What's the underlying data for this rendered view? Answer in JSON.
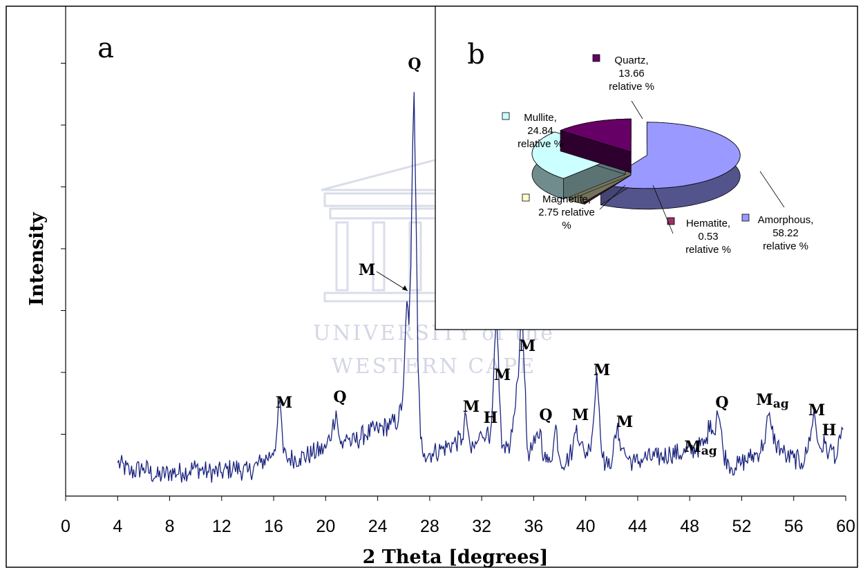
{
  "chart_data": [
    {
      "panel": "a",
      "type": "line",
      "xlabel": "2 Theta [degrees]",
      "ylabel": "Intensity",
      "xlim": [
        0,
        60
      ],
      "xticks": [
        0,
        4,
        8,
        12,
        16,
        20,
        24,
        28,
        32,
        36,
        40,
        44,
        48,
        52,
        56,
        60
      ],
      "ylim": [
        0,
        100
      ],
      "y_tick_labels_shown": false,
      "grid": false,
      "series": [
        {
          "color": "#1a237e",
          "x": [
            4.0,
            5.0,
            6.0,
            7.0,
            8.0,
            9.0,
            10.0,
            11.0,
            12.0,
            13.0,
            14.0,
            15.0,
            15.9,
            16.2,
            16.45,
            16.6,
            16.75,
            17.0,
            18.0,
            19.0,
            20.0,
            20.5,
            20.8,
            21.0,
            21.3,
            21.6,
            22.0,
            23.0,
            24.0,
            25.0,
            25.6,
            25.9,
            26.05,
            26.25,
            26.4,
            26.55,
            26.7,
            26.8,
            26.95,
            27.1,
            27.3,
            27.6,
            28.2,
            29.0,
            29.8,
            30.5,
            30.8,
            31.0,
            31.2,
            31.6,
            32.0,
            32.4,
            32.6,
            32.9,
            33.15,
            33.35,
            33.55,
            33.8,
            34.2,
            34.6,
            34.9,
            35.1,
            35.3,
            35.5,
            35.7,
            36.1,
            36.5,
            36.8,
            37.1,
            37.5,
            37.7,
            38.0,
            38.5,
            39.0,
            39.3,
            39.6,
            39.9,
            40.3,
            40.6,
            40.85,
            41.05,
            41.3,
            41.7,
            42.1,
            42.4,
            42.6,
            42.85,
            43.2,
            43.8,
            44.5,
            45.5,
            46.5,
            47.5,
            48.5,
            49.2,
            49.6,
            49.9,
            50.1,
            50.3,
            50.6,
            51.0,
            51.5,
            52.0,
            52.6,
            53.2,
            53.7,
            54.05,
            54.3,
            54.6,
            55.0,
            55.5,
            56.0,
            56.6,
            57.0,
            57.35,
            57.55,
            57.8,
            58.1,
            58.4,
            58.7,
            59.0,
            59.3,
            59.6,
            59.8
          ],
          "y": [
            7,
            5,
            6,
            4,
            5,
            5,
            6,
            5,
            5,
            6,
            5,
            7,
            9,
            12,
            20,
            16,
            9,
            8,
            8,
            9,
            10,
            14,
            18,
            13,
            10,
            13,
            11,
            13,
            14,
            15,
            16,
            20,
            28,
            41,
            36,
            48,
            75,
            85,
            60,
            28,
            12,
            9,
            9,
            10,
            11,
            12,
            17,
            13,
            9,
            11,
            13,
            14,
            11,
            24,
            38,
            22,
            10,
            9,
            11,
            19,
            30,
            42,
            25,
            10,
            9,
            11,
            14,
            8,
            7,
            10,
            15,
            8,
            7,
            10,
            15,
            11,
            9,
            10,
            16,
            26,
            18,
            8,
            6,
            9,
            14,
            12,
            10,
            8,
            7,
            8,
            8,
            9,
            9,
            10,
            11,
            16,
            13,
            18,
            16,
            9,
            7,
            6,
            7,
            8,
            9,
            11,
            17,
            14,
            11,
            10,
            8,
            8,
            7,
            9,
            14,
            18,
            12,
            10,
            11,
            9,
            10,
            8,
            12,
            14
          ]
        }
      ],
      "peak_labels": [
        {
          "text": "M",
          "x": 16.6
        },
        {
          "text": "Q",
          "x": 20.9
        },
        {
          "text": "Q",
          "x": 26.75
        },
        {
          "text": "M",
          "x": 26.4
        },
        {
          "text": "M",
          "x": 31.0
        },
        {
          "text": "H",
          "x": 32.6
        },
        {
          "text": "M",
          "x": 33.35
        },
        {
          "text": "M",
          "x": 35.3
        },
        {
          "text": "Q",
          "x": 36.6
        },
        {
          "text": "Q",
          "x": 50.3
        },
        {
          "text": "M",
          "x": 39.3
        },
        {
          "text": "M",
          "x": 41.0
        },
        {
          "text": "M",
          "x": 42.6
        },
        {
          "text": "M",
          "x": 57.5
        },
        {
          "text": "H",
          "x": 58.5
        },
        {
          "text": "Mag",
          "x": 49.4
        },
        {
          "text": "Mag",
          "x": 54.3
        }
      ]
    },
    {
      "panel": "b",
      "type": "pie",
      "slices": [
        {
          "name": "Amorphous",
          "value": 58.22,
          "color": "#9999ff",
          "label": [
            "Amorphous,",
            "58.22",
            "relative %"
          ]
        },
        {
          "name": "Hematite",
          "value": 0.53,
          "color": "#993366",
          "label": [
            "Hematite,",
            "0.53",
            "relative %"
          ]
        },
        {
          "name": "Magnetite",
          "value": 2.75,
          "color": "#ffffcc",
          "label": [
            "Magnetite,",
            "2.75 relative",
            "%"
          ]
        },
        {
          "name": "Mullite",
          "value": 24.84,
          "color": "#ccffff",
          "label": [
            "Mullite,",
            "24.84",
            "relative %"
          ]
        },
        {
          "name": "Quartz",
          "value": 13.66,
          "color": "#660066",
          "label": [
            "Quartz,",
            "13.66",
            "relative %"
          ]
        }
      ]
    }
  ],
  "panel_letters": {
    "a": "a",
    "b": "b"
  },
  "watermark": {
    "line1": "UNIVERSITY of the",
    "line2": "WESTERN CAPE"
  }
}
